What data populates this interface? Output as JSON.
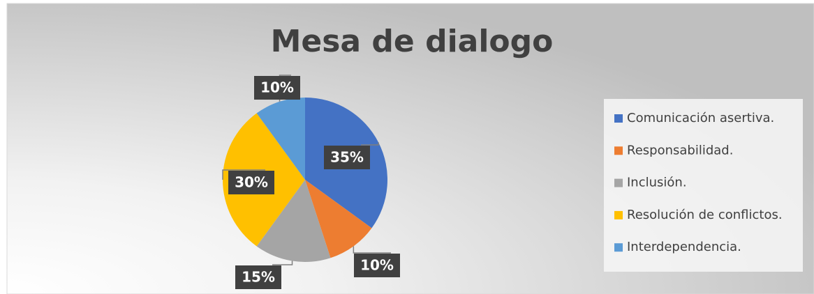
{
  "chart_data": {
    "type": "pie",
    "title": "Mesa de dialogo",
    "categories": [
      "Comunicación asertiva.",
      "Responsabilidad.",
      "Inclusión.",
      "Resolución de conflictos.",
      "Interdependencia."
    ],
    "values": [
      35,
      10,
      15,
      30,
      10
    ],
    "value_labels": [
      "35%",
      "10%",
      "15%",
      "30%",
      "10%"
    ],
    "colors": [
      "#4472c4",
      "#ed7d31",
      "#a5a5a5",
      "#ffc000",
      "#5b9bd5"
    ],
    "legend": "right"
  }
}
